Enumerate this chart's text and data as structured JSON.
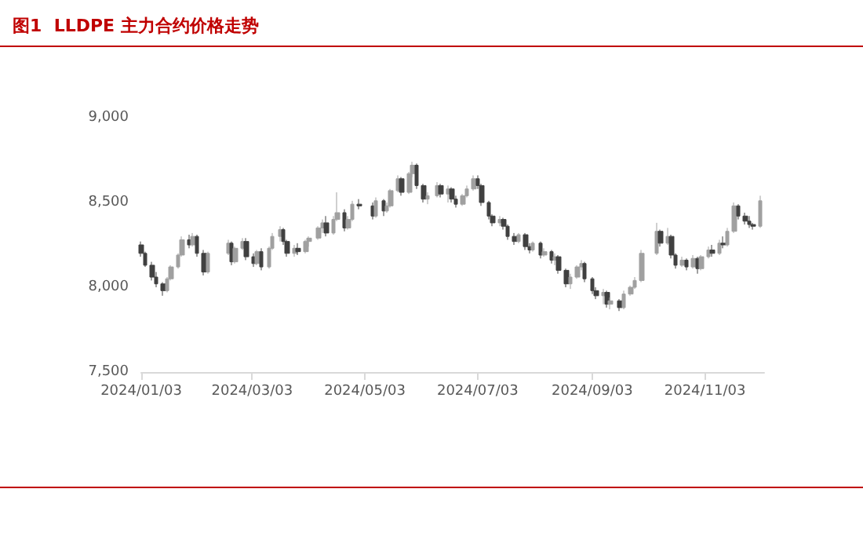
{
  "chart_data": {
    "type": "candlestick",
    "title": "图1  LLDPE 主力合约价格走势",
    "colors": [
      "#404040",
      "#404040",
      "#404040",
      "#404040",
      "#404040",
      "#a0a0a0",
      "#a0a0a0",
      "#a0a0a0",
      "#a0a0a0",
      "#404040",
      "#a0a0a0",
      "#404040",
      "#404040",
      "#a0a0a0",
      "#a0a0a0",
      "#404040",
      "#a0a0a0",
      "#a0a0a0",
      "#404040",
      "#404040",
      "#a0a0a0",
      "#404040",
      "#a0a0a0",
      "#a0a0a0",
      "#a0a0a0",
      "#404040",
      "#404040",
      "#a0a0a0",
      "#404040",
      "#a0a0a0",
      "#a0a0a0",
      "#a0a0a0",
      "#a0a0a0",
      "#404040",
      "#a0a0a0",
      "#a0a0a0",
      "#404040",
      "#a0a0a0",
      "#a0a0a0",
      "#404040",
      "#404040",
      "#a0a0a0",
      "#404040",
      "#a0a0a0",
      "#a0a0a0",
      "#a0a0a0",
      "#404040",
      "#a0a0a0",
      "#a0a0a0",
      "#404040",
      "#404040",
      "#a0a0a0",
      "#a0a0a0",
      "#404040",
      "#a0a0a0",
      "#404040",
      "#404040",
      "#a0a0a0",
      "#a0a0a0",
      "#a0a0a0",
      "#404040",
      "#404040",
      "#404040",
      "#404040",
      "#a0a0a0",
      "#404040",
      "#404040",
      "#404040",
      "#a0a0a0",
      "#404040",
      "#404040",
      "#a0a0a0",
      "#404040",
      "#a0a0a0",
      "#404040",
      "#a0a0a0",
      "#404040",
      "#404040",
      "#a0a0a0",
      "#a0a0a0",
      "#a0a0a0",
      "#404040",
      "#404040",
      "#404040",
      "#a0a0a0",
      "#404040",
      "#a0a0a0",
      "#404040",
      "#a0a0a0",
      "#a0a0a0",
      "#a0a0a0",
      "#a0a0a0",
      "#a0a0a0",
      "#404040",
      "#a0a0a0",
      "#404040",
      "#404040",
      "#a0a0a0",
      "#404040",
      "#a0a0a0",
      "#404040",
      "#a0a0a0",
      "#a0a0a0",
      "#404040",
      "#a0a0a0",
      "#404040",
      "#a0a0a0",
      "#a0a0a0",
      "#404040",
      "#404040",
      "#404040",
      "#404040",
      "#a0a0a0"
    ],
    "xlim": [
      "2024-01-03",
      "2024-12-05"
    ],
    "xticks": [
      {
        "value": "2024-01-03",
        "label": "2024/01/03"
      },
      {
        "value": "2024-03-03",
        "label": "2024/03/03"
      },
      {
        "value": "2024-05-03",
        "label": "2024/05/03"
      },
      {
        "value": "2024-07-03",
        "label": "2024/07/03"
      },
      {
        "value": "2024-09-03",
        "label": "2024/09/03"
      },
      {
        "value": "2024-11-03",
        "label": "2024/11/03"
      }
    ],
    "ylim": [
      7500,
      9000
    ],
    "yticks": [
      {
        "value": 7500,
        "label": "7,500"
      },
      {
        "value": 8000,
        "label": "8,000"
      },
      {
        "value": 8500,
        "label": "8,500"
      },
      {
        "value": 9000,
        "label": "9,000"
      }
    ],
    "grid": false,
    "x": [
      "2024-01-03",
      "2024-01-05",
      "2024-01-09",
      "2024-01-11",
      "2024-01-15",
      "2024-01-17",
      "2024-01-19",
      "2024-01-23",
      "2024-01-25",
      "2024-01-29",
      "2024-01-31",
      "2024-02-02",
      "2024-02-06",
      "2024-02-08",
      "2024-02-19",
      "2024-02-21",
      "2024-02-23",
      "2024-02-27",
      "2024-02-29",
      "2024-03-04",
      "2024-03-06",
      "2024-03-08",
      "2024-03-12",
      "2024-03-14",
      "2024-03-18",
      "2024-03-20",
      "2024-03-22",
      "2024-03-26",
      "2024-03-28",
      "2024-04-01",
      "2024-04-03",
      "2024-04-08",
      "2024-04-10",
      "2024-04-12",
      "2024-04-16",
      "2024-04-18",
      "2024-04-22",
      "2024-04-24",
      "2024-04-26",
      "2024-04-30",
      "2024-05-07",
      "2024-05-09",
      "2024-05-13",
      "2024-05-15",
      "2024-05-17",
      "2024-05-21",
      "2024-05-23",
      "2024-05-27",
      "2024-05-29",
      "2024-05-31",
      "2024-06-04",
      "2024-06-06",
      "2024-06-11",
      "2024-06-13",
      "2024-06-17",
      "2024-06-19",
      "2024-06-21",
      "2024-06-25",
      "2024-06-27",
      "2024-07-01",
      "2024-07-03",
      "2024-07-05",
      "2024-07-09",
      "2024-07-11",
      "2024-07-15",
      "2024-07-17",
      "2024-07-19",
      "2024-07-23",
      "2024-07-25",
      "2024-07-29",
      "2024-07-31",
      "2024-08-02",
      "2024-08-06",
      "2024-08-08",
      "2024-08-12",
      "2024-08-14",
      "2024-08-16",
      "2024-08-20",
      "2024-08-22",
      "2024-08-26",
      "2024-08-28",
      "2024-08-30",
      "2024-09-03",
      "2024-09-05",
      "2024-09-09",
      "2024-09-11",
      "2024-09-13",
      "2024-09-18",
      "2024-09-20",
      "2024-09-24",
      "2024-09-26",
      "2024-09-30",
      "2024-10-08",
      "2024-10-10",
      "2024-10-14",
      "2024-10-16",
      "2024-10-18",
      "2024-10-22",
      "2024-10-24",
      "2024-10-28",
      "2024-10-30",
      "2024-11-01",
      "2024-11-05",
      "2024-11-07",
      "2024-11-11",
      "2024-11-13",
      "2024-11-15",
      "2024-11-19",
      "2024-11-21",
      "2024-11-25",
      "2024-11-27",
      "2024-11-29",
      "2024-12-03"
    ],
    "ohlc": [
      [
        8250,
        8270,
        8180,
        8200
      ],
      [
        8200,
        8210,
        8120,
        8130
      ],
      [
        8130,
        8150,
        8040,
        8060
      ],
      [
        8060,
        8090,
        8000,
        8020
      ],
      [
        8020,
        8030,
        7950,
        7980
      ],
      [
        7980,
        8060,
        7970,
        8050
      ],
      [
        8050,
        8130,
        8040,
        8120
      ],
      [
        8120,
        8200,
        8110,
        8190
      ],
      [
        8190,
        8300,
        8180,
        8280
      ],
      [
        8280,
        8310,
        8230,
        8250
      ],
      [
        8250,
        8320,
        8240,
        8300
      ],
      [
        8300,
        8310,
        8180,
        8200
      ],
      [
        8200,
        8220,
        8070,
        8090
      ],
      [
        8090,
        8210,
        8080,
        8200
      ],
      [
        8200,
        8280,
        8190,
        8260
      ],
      [
        8260,
        8270,
        8130,
        8150
      ],
      [
        8150,
        8240,
        8140,
        8230
      ],
      [
        8230,
        8290,
        8220,
        8270
      ],
      [
        8270,
        8290,
        8160,
        8180
      ],
      [
        8180,
        8200,
        8120,
        8140
      ],
      [
        8140,
        8220,
        8130,
        8210
      ],
      [
        8210,
        8230,
        8100,
        8120
      ],
      [
        8120,
        8240,
        8110,
        8230
      ],
      [
        8230,
        8320,
        8220,
        8300
      ],
      [
        8300,
        8360,
        8270,
        8340
      ],
      [
        8340,
        8350,
        8250,
        8270
      ],
      [
        8270,
        8280,
        8180,
        8200
      ],
      [
        8200,
        8250,
        8180,
        8230
      ],
      [
        8230,
        8260,
        8190,
        8210
      ],
      [
        8210,
        8280,
        8200,
        8270
      ],
      [
        8270,
        8300,
        8240,
        8290
      ],
      [
        8290,
        8360,
        8280,
        8350
      ],
      [
        8350,
        8400,
        8320,
        8380
      ],
      [
        8380,
        8420,
        8300,
        8320
      ],
      [
        8320,
        8420,
        8310,
        8400
      ],
      [
        8400,
        8560,
        8390,
        8440
      ],
      [
        8440,
        8460,
        8330,
        8350
      ],
      [
        8350,
        8420,
        8340,
        8400
      ],
      [
        8400,
        8510,
        8390,
        8490
      ],
      [
        8490,
        8520,
        8460,
        8480
      ],
      [
        8480,
        8500,
        8400,
        8420
      ],
      [
        8420,
        8530,
        8410,
        8510
      ],
      [
        8510,
        8520,
        8420,
        8450
      ],
      [
        8450,
        8500,
        8440,
        8480
      ],
      [
        8480,
        8580,
        8470,
        8570
      ],
      [
        8570,
        8660,
        8560,
        8640
      ],
      [
        8640,
        8650,
        8540,
        8560
      ],
      [
        8560,
        8680,
        8550,
        8670
      ],
      [
        8670,
        8740,
        8650,
        8720
      ],
      [
        8720,
        8730,
        8580,
        8600
      ],
      [
        8600,
        8610,
        8500,
        8520
      ],
      [
        8520,
        8560,
        8490,
        8540
      ],
      [
        8540,
        8620,
        8530,
        8600
      ],
      [
        8600,
        8610,
        8530,
        8550
      ],
      [
        8550,
        8600,
        8500,
        8580
      ],
      [
        8580,
        8590,
        8500,
        8520
      ],
      [
        8520,
        8540,
        8470,
        8490
      ],
      [
        8490,
        8550,
        8480,
        8540
      ],
      [
        8540,
        8600,
        8530,
        8580
      ],
      [
        8580,
        8660,
        8570,
        8640
      ],
      [
        8640,
        8660,
        8580,
        8600
      ],
      [
        8600,
        8610,
        8480,
        8500
      ],
      [
        8500,
        8510,
        8400,
        8420
      ],
      [
        8420,
        8430,
        8360,
        8380
      ],
      [
        8380,
        8420,
        8360,
        8400
      ],
      [
        8400,
        8410,
        8340,
        8360
      ],
      [
        8360,
        8370,
        8280,
        8300
      ],
      [
        8300,
        8320,
        8250,
        8270
      ],
      [
        8270,
        8320,
        8260,
        8310
      ],
      [
        8310,
        8320,
        8220,
        8240
      ],
      [
        8240,
        8260,
        8200,
        8220
      ],
      [
        8220,
        8270,
        8210,
        8260
      ],
      [
        8260,
        8270,
        8170,
        8190
      ],
      [
        8190,
        8230,
        8180,
        8210
      ],
      [
        8210,
        8220,
        8140,
        8160
      ],
      [
        8160,
        8200,
        8130,
        8180
      ],
      [
        8180,
        8190,
        8080,
        8100
      ],
      [
        8100,
        8110,
        8000,
        8020
      ],
      [
        8020,
        8080,
        7990,
        8060
      ],
      [
        8060,
        8130,
        8050,
        8120
      ],
      [
        8120,
        8160,
        8100,
        8140
      ],
      [
        8140,
        8150,
        8030,
        8050
      ],
      [
        8050,
        8060,
        7960,
        7980
      ],
      [
        7980,
        8000,
        7930,
        7950
      ],
      [
        7950,
        7990,
        7900,
        7970
      ],
      [
        7970,
        7980,
        7880,
        7900
      ],
      [
        7900,
        7940,
        7870,
        7920
      ],
      [
        7920,
        7930,
        7860,
        7880
      ],
      [
        7880,
        7980,
        7870,
        7960
      ],
      [
        7960,
        8010,
        7950,
        8000
      ],
      [
        8000,
        8060,
        7990,
        8040
      ],
      [
        8040,
        8220,
        8030,
        8200
      ],
      [
        8200,
        8380,
        8190,
        8330
      ],
      [
        8330,
        8340,
        8240,
        8260
      ],
      [
        8260,
        8350,
        8250,
        8300
      ],
      [
        8300,
        8310,
        8170,
        8190
      ],
      [
        8190,
        8200,
        8110,
        8130
      ],
      [
        8130,
        8180,
        8120,
        8160
      ],
      [
        8160,
        8170,
        8100,
        8120
      ],
      [
        8120,
        8190,
        8110,
        8170
      ],
      [
        8170,
        8180,
        8080,
        8110
      ],
      [
        8110,
        8190,
        8100,
        8180
      ],
      [
        8180,
        8240,
        8170,
        8220
      ],
      [
        8220,
        8250,
        8180,
        8200
      ],
      [
        8200,
        8280,
        8190,
        8260
      ],
      [
        8260,
        8300,
        8230,
        8250
      ],
      [
        8250,
        8350,
        8240,
        8330
      ],
      [
        8330,
        8500,
        8320,
        8480
      ],
      [
        8480,
        8490,
        8400,
        8420
      ],
      [
        8420,
        8440,
        8370,
        8390
      ],
      [
        8390,
        8420,
        8350,
        8370
      ],
      [
        8370,
        8380,
        8340,
        8360
      ],
      [
        8360,
        8540,
        8350,
        8510
      ]
    ]
  }
}
